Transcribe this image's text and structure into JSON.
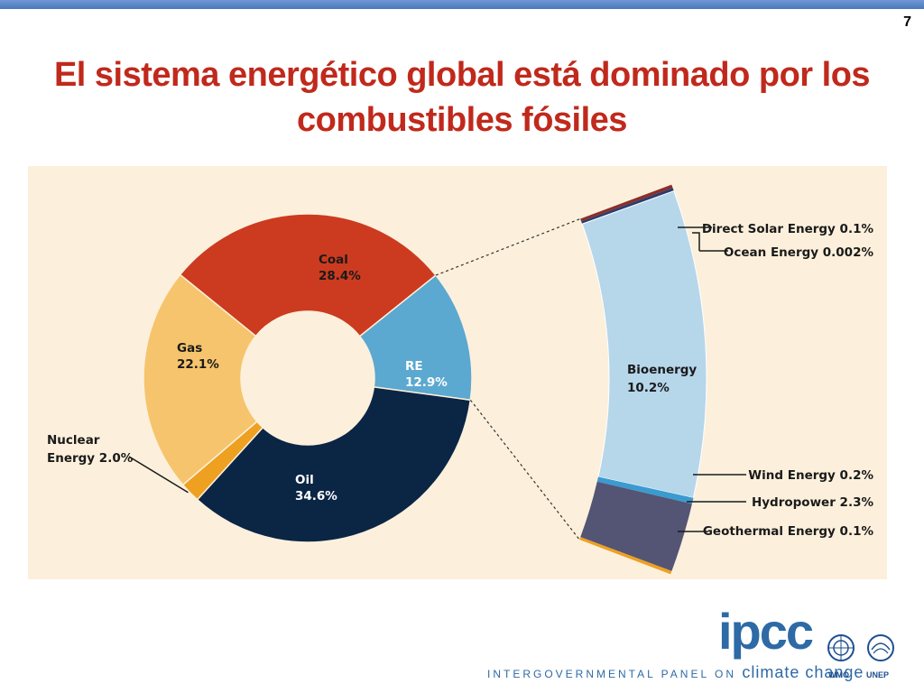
{
  "slide_number": "7",
  "title": "El sistema energético global está dominado por los combustibles fósiles",
  "chart_data": {
    "type": "pie",
    "subtype": "donut-with-breakout",
    "slices": [
      {
        "name": "Coal",
        "value": 28.4,
        "label": "Coal",
        "value_label": "28.4%",
        "color": "#cc3b1f"
      },
      {
        "name": "RE",
        "value": 12.9,
        "label": "RE",
        "value_label": "12.9%",
        "color": "#5ba8d0"
      },
      {
        "name": "Oil",
        "value": 34.6,
        "label": "Oil",
        "value_label": "34.6%",
        "color": "#0b2545"
      },
      {
        "name": "Nuclear Energy",
        "value": 2.0,
        "label": "Nuclear Energy 2.0%",
        "color": "#eea021"
      },
      {
        "name": "Gas",
        "value": 22.1,
        "label": "Gas",
        "value_label": "22.1%",
        "color": "#f6c46c"
      }
    ],
    "breakout": {
      "parent": "RE",
      "segments": [
        {
          "name": "Direct Solar Energy",
          "value": 0.1,
          "label": "Direct Solar Energy 0.1%",
          "color": "#8a2f2a"
        },
        {
          "name": "Ocean Energy",
          "value": 0.002,
          "label": "Ocean Energy 0.002%",
          "color": "#2b3d6e"
        },
        {
          "name": "Bioenergy",
          "value": 10.2,
          "label": "Bioenergy",
          "value_label": "10.2%",
          "color": "#b6d6ea"
        },
        {
          "name": "Wind Energy",
          "value": 0.2,
          "label": "Wind Energy 0.2%",
          "color": "#3a9bd0"
        },
        {
          "name": "Hydropower",
          "value": 2.3,
          "label": "Hydropower 2.3%",
          "color": "#545474"
        },
        {
          "name": "Geothermal Energy",
          "value": 0.1,
          "label": "Geothermal Energy 0.1%",
          "color": "#eea021"
        }
      ]
    }
  },
  "footer": {
    "org_text": "INTERGOVERNMENTAL PANEL ON",
    "org_text_tail": "climate change",
    "ipcc_logo": "ipcc",
    "wmo_caption": "WMO",
    "unep_caption": "UNEP"
  }
}
